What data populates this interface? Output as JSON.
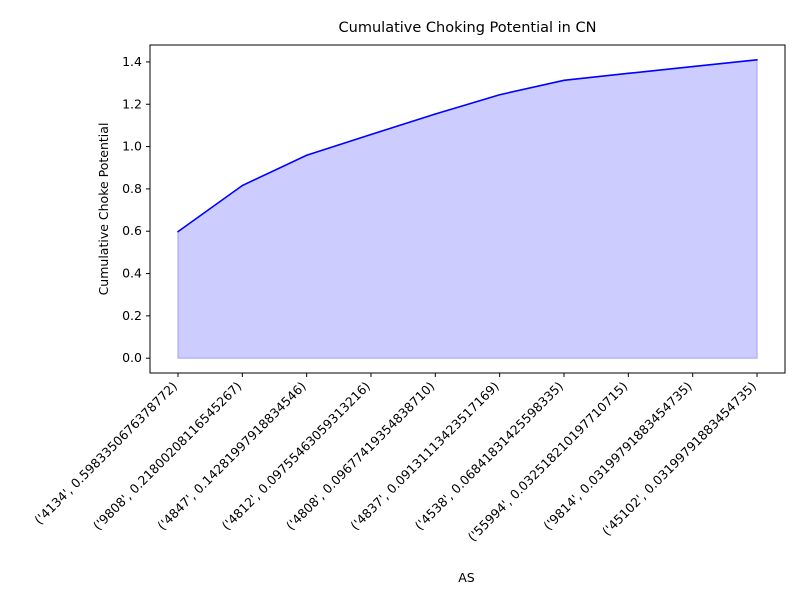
{
  "chart_data": {
    "type": "area",
    "title": "Cumulative Choking Potential in CN",
    "xlabel": "AS",
    "ylabel": "Cumulative Choke Potential",
    "categories": [
      "('4134', 0.5983350676378772)",
      "('9808', 0.21800208116545267)",
      "('4847', 0.14281997918834546)",
      "('4812', 0.09755463059313216)",
      "('4808', 0.09677419354838710)",
      "('4837', 0.09131113423517169)",
      "('4538', 0.06841831425598335)",
      "('55994', 0.032518210197710715)",
      "('9814', 0.03199791883454735)",
      "('45102', 0.03199791883454735)"
    ],
    "values": [
      0.598,
      0.816,
      0.959,
      1.057,
      1.154,
      1.245,
      1.313,
      1.346,
      1.378,
      1.41
    ],
    "ylim": [
      -0.07,
      1.48
    ],
    "yticks": [
      0.0,
      0.2,
      0.4,
      0.6,
      0.8,
      1.0,
      1.2,
      1.4
    ],
    "grid": false,
    "line_color": "#0000ff",
    "fill_color": "#ccccff",
    "fill_edge_color": "#9f9fff"
  }
}
